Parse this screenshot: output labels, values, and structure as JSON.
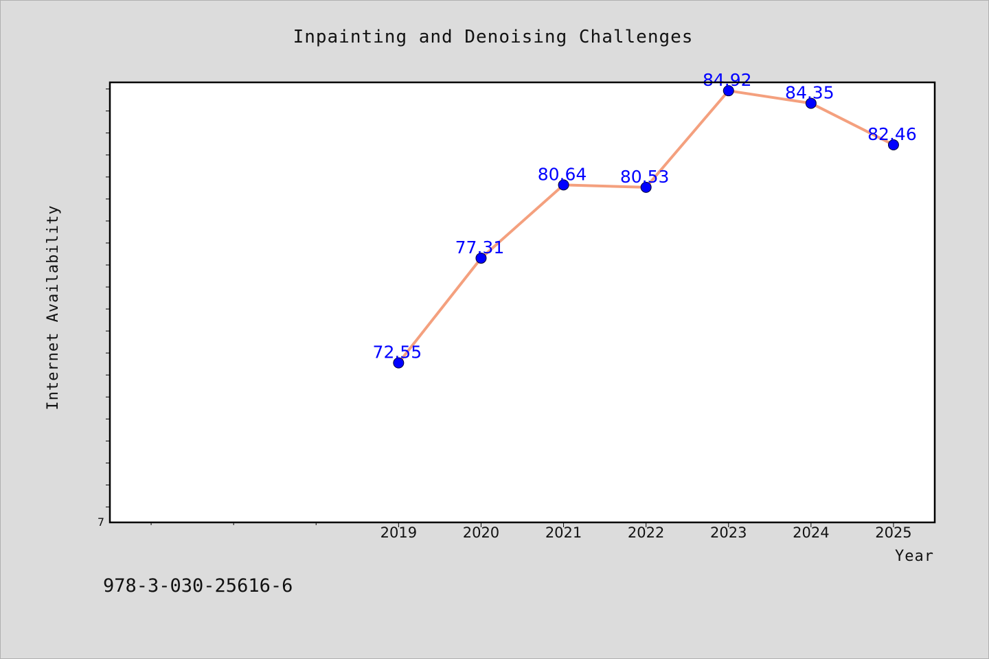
{
  "chart_data": {
    "type": "line",
    "title": "Inpainting and Denoising Challenges",
    "xlabel": "Year",
    "ylabel": "Internet Availability",
    "x": [
      2019,
      2020,
      2021,
      2022,
      2023,
      2024,
      2025
    ],
    "x_tick_labels": [
      "2019",
      "2020",
      "2021",
      "2022",
      "2023",
      "2024",
      "2025"
    ],
    "series": [
      {
        "values": [
          72.55,
          77.31,
          80.64,
          80.53,
          84.92,
          84.35,
          82.46
        ],
        "data_labels": [
          "72.55",
          "77.31",
          "80.64",
          "80.53",
          "84.92",
          "84.35",
          "82.46"
        ]
      }
    ],
    "xlim": [
      2015.5,
      2025.5
    ],
    "ylim": [
      65.3,
      85.3
    ],
    "y_tick_step": 1,
    "y_min_label": "7",
    "grid": false,
    "colors": {
      "line": "#f4a07e",
      "marker": "#0000ff",
      "data_label": "#0000ff",
      "plot_bg": "#ffffff",
      "figure_bg": "#dcdcdc"
    }
  },
  "footer": {
    "isbn": "978-3-030-25616-6"
  }
}
